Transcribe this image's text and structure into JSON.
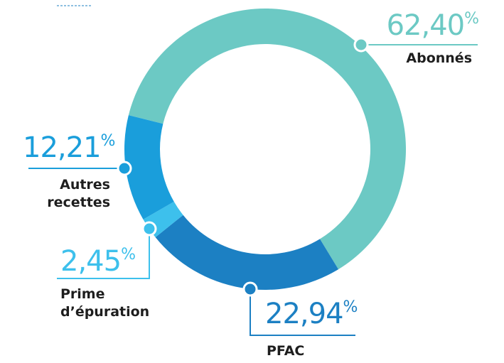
{
  "chart_data": {
    "type": "donut",
    "categories": [
      "Abonnés",
      "PFAC",
      "Prime d’épuration",
      "Autres recettes"
    ],
    "values": [
      62.4,
      22.94,
      2.45,
      12.21
    ],
    "value_labels": [
      "62,40%",
      "22,94%",
      "2,45%",
      "12,21%"
    ],
    "colors": [
      "#6cc9c4",
      "#1c80c3",
      "#3dc0ec",
      "#1a9edb"
    ]
  }
}
